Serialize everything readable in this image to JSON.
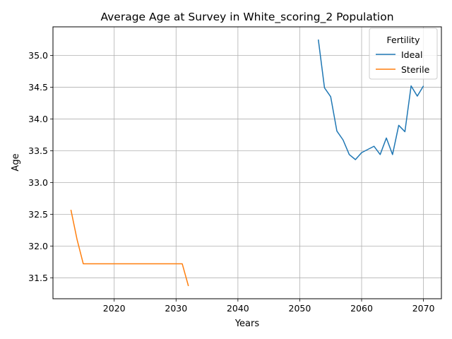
{
  "chart_data": {
    "type": "line",
    "title": "Average Age at Survey in White_scoring_2 Population",
    "xlabel": "Years",
    "ylabel": "Age",
    "xlim": [
      2010.1,
      2072.9
    ],
    "ylim": [
      31.17,
      35.45
    ],
    "x_ticks": [
      2020,
      2030,
      2040,
      2050,
      2060,
      2070
    ],
    "x_tick_labels": [
      "2020",
      "2030",
      "2040",
      "2050",
      "2060",
      "2070"
    ],
    "y_ticks": [
      31.5,
      32.0,
      32.5,
      33.0,
      33.5,
      34.0,
      34.5,
      35.0
    ],
    "y_tick_labels": [
      "31.5",
      "32.0",
      "32.5",
      "33.0",
      "33.5",
      "34.0",
      "34.5",
      "35.0"
    ],
    "grid": true,
    "legend": {
      "title": "Fertility",
      "position": "top-right"
    },
    "series": [
      {
        "name": "Ideal",
        "color": "#1f77b4",
        "x": [
          2053,
          2054,
          2055,
          2056,
          2057,
          2058,
          2059,
          2060,
          2061,
          2062,
          2063,
          2064,
          2065,
          2066,
          2067,
          2068,
          2069,
          2070
        ],
        "y": [
          35.25,
          34.49,
          34.35,
          33.81,
          33.67,
          33.44,
          33.36,
          33.47,
          33.52,
          33.57,
          33.44,
          33.7,
          33.44,
          33.9,
          33.8,
          34.52,
          34.36,
          34.52
        ]
      },
      {
        "name": "Sterile",
        "color": "#ff7f0e",
        "x": [
          2013,
          2014,
          2015,
          2016,
          2017,
          2018,
          2019,
          2020,
          2021,
          2022,
          2023,
          2024,
          2025,
          2026,
          2027,
          2028,
          2029,
          2030,
          2031,
          2032
        ],
        "y": [
          32.57,
          32.1,
          31.72,
          31.72,
          31.72,
          31.72,
          31.72,
          31.72,
          31.72,
          31.72,
          31.72,
          31.72,
          31.72,
          31.72,
          31.72,
          31.72,
          31.72,
          31.72,
          31.72,
          31.37
        ]
      }
    ]
  }
}
